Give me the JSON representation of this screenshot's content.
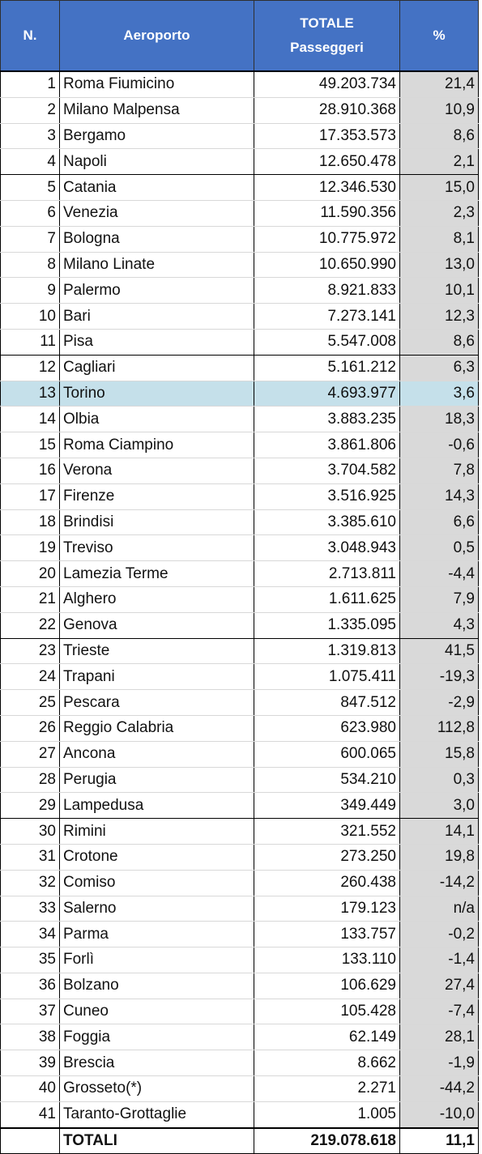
{
  "header": {
    "col_n": "N.",
    "col_airport": "Aeroporto",
    "col_total_line1": "TOTALE",
    "col_total_line2": "Passeggeri",
    "col_pct": "%"
  },
  "rows": [
    {
      "n": "1",
      "airport": "Roma Fiumicino",
      "passengers": "49.203.734",
      "pct": "21,4"
    },
    {
      "n": "2",
      "airport": "Milano Malpensa",
      "passengers": "28.910.368",
      "pct": "10,9"
    },
    {
      "n": "3",
      "airport": "Bergamo",
      "passengers": "17.353.573",
      "pct": "8,6"
    },
    {
      "n": "4",
      "airport": "Napoli",
      "passengers": "12.650.478",
      "pct": "2,1"
    },
    {
      "n": "5",
      "airport": "Catania",
      "passengers": "12.346.530",
      "pct": "15,0"
    },
    {
      "n": "6",
      "airport": "Venezia",
      "passengers": "11.590.356",
      "pct": "2,3"
    },
    {
      "n": "7",
      "airport": "Bologna",
      "passengers": "10.775.972",
      "pct": "8,1"
    },
    {
      "n": "8",
      "airport": "Milano Linate",
      "passengers": "10.650.990",
      "pct": "13,0"
    },
    {
      "n": "9",
      "airport": "Palermo",
      "passengers": "8.921.833",
      "pct": "10,1"
    },
    {
      "n": "10",
      "airport": "Bari",
      "passengers": "7.273.141",
      "pct": "12,3"
    },
    {
      "n": "11",
      "airport": "Pisa",
      "passengers": "5.547.008",
      "pct": "8,6"
    },
    {
      "n": "12",
      "airport": "Cagliari",
      "passengers": "5.161.212",
      "pct": "6,3"
    },
    {
      "n": "13",
      "airport": "Torino",
      "passengers": "4.693.977",
      "pct": "3,6"
    },
    {
      "n": "14",
      "airport": "Olbia",
      "passengers": "3.883.235",
      "pct": "18,3"
    },
    {
      "n": "15",
      "airport": "Roma Ciampino",
      "passengers": "3.861.806",
      "pct": "-0,6"
    },
    {
      "n": "16",
      "airport": "Verona",
      "passengers": "3.704.582",
      "pct": "7,8"
    },
    {
      "n": "17",
      "airport": "Firenze",
      "passengers": "3.516.925",
      "pct": "14,3"
    },
    {
      "n": "18",
      "airport": "Brindisi",
      "passengers": "3.385.610",
      "pct": "6,6"
    },
    {
      "n": "19",
      "airport": "Treviso",
      "passengers": "3.048.943",
      "pct": "0,5"
    },
    {
      "n": "20",
      "airport": "Lamezia Terme",
      "passengers": "2.713.811",
      "pct": "-4,4"
    },
    {
      "n": "21",
      "airport": "Alghero",
      "passengers": "1.611.625",
      "pct": "7,9"
    },
    {
      "n": "22",
      "airport": "Genova",
      "passengers": "1.335.095",
      "pct": "4,3"
    },
    {
      "n": "23",
      "airport": "Trieste",
      "passengers": "1.319.813",
      "pct": "41,5"
    },
    {
      "n": "24",
      "airport": "Trapani",
      "passengers": "1.075.411",
      "pct": "-19,3"
    },
    {
      "n": "25",
      "airport": "Pescara",
      "passengers": "847.512",
      "pct": "-2,9"
    },
    {
      "n": "26",
      "airport": "Reggio Calabria",
      "passengers": "623.980",
      "pct": "112,8"
    },
    {
      "n": "27",
      "airport": "Ancona",
      "passengers": "600.065",
      "pct": "15,8"
    },
    {
      "n": "28",
      "airport": "Perugia",
      "passengers": "534.210",
      "pct": "0,3"
    },
    {
      "n": "29",
      "airport": "Lampedusa",
      "passengers": "349.449",
      "pct": "3,0"
    },
    {
      "n": "30",
      "airport": "Rimini",
      "passengers": "321.552",
      "pct": "14,1"
    },
    {
      "n": "31",
      "airport": "Crotone",
      "passengers": "273.250",
      "pct": "19,8"
    },
    {
      "n": "32",
      "airport": "Comiso",
      "passengers": "260.438",
      "pct": "-14,2"
    },
    {
      "n": "33",
      "airport": "Salerno",
      "passengers": "179.123",
      "pct": "n/a"
    },
    {
      "n": "34",
      "airport": "Parma",
      "passengers": "133.757",
      "pct": "-0,2"
    },
    {
      "n": "35",
      "airport": "Forlì",
      "passengers": "133.110",
      "pct": "-1,4"
    },
    {
      "n": "36",
      "airport": "Bolzano",
      "passengers": "106.629",
      "pct": "27,4"
    },
    {
      "n": "37",
      "airport": "Cuneo",
      "passengers": "105.428",
      "pct": "-7,4"
    },
    {
      "n": "38",
      "airport": "Foggia",
      "passengers": "62.149",
      "pct": "28,1"
    },
    {
      "n": "39",
      "airport": "Brescia",
      "passengers": "8.662",
      "pct": "-1,9"
    },
    {
      "n": "40",
      "airport": "Grosseto(*)",
      "passengers": "2.271",
      "pct": "-44,2"
    },
    {
      "n": "41",
      "airport": "Taranto-Grottaglie",
      "passengers": "1.005",
      "pct": "-10,0"
    }
  ],
  "totals": {
    "label": "TOTALI",
    "passengers": "219.078.618",
    "pct": "11,1"
  },
  "colors": {
    "header_bg": "#4472c4",
    "highlight_row": "#c5e0ea",
    "pct_column_bg": "#d9d9d9"
  }
}
